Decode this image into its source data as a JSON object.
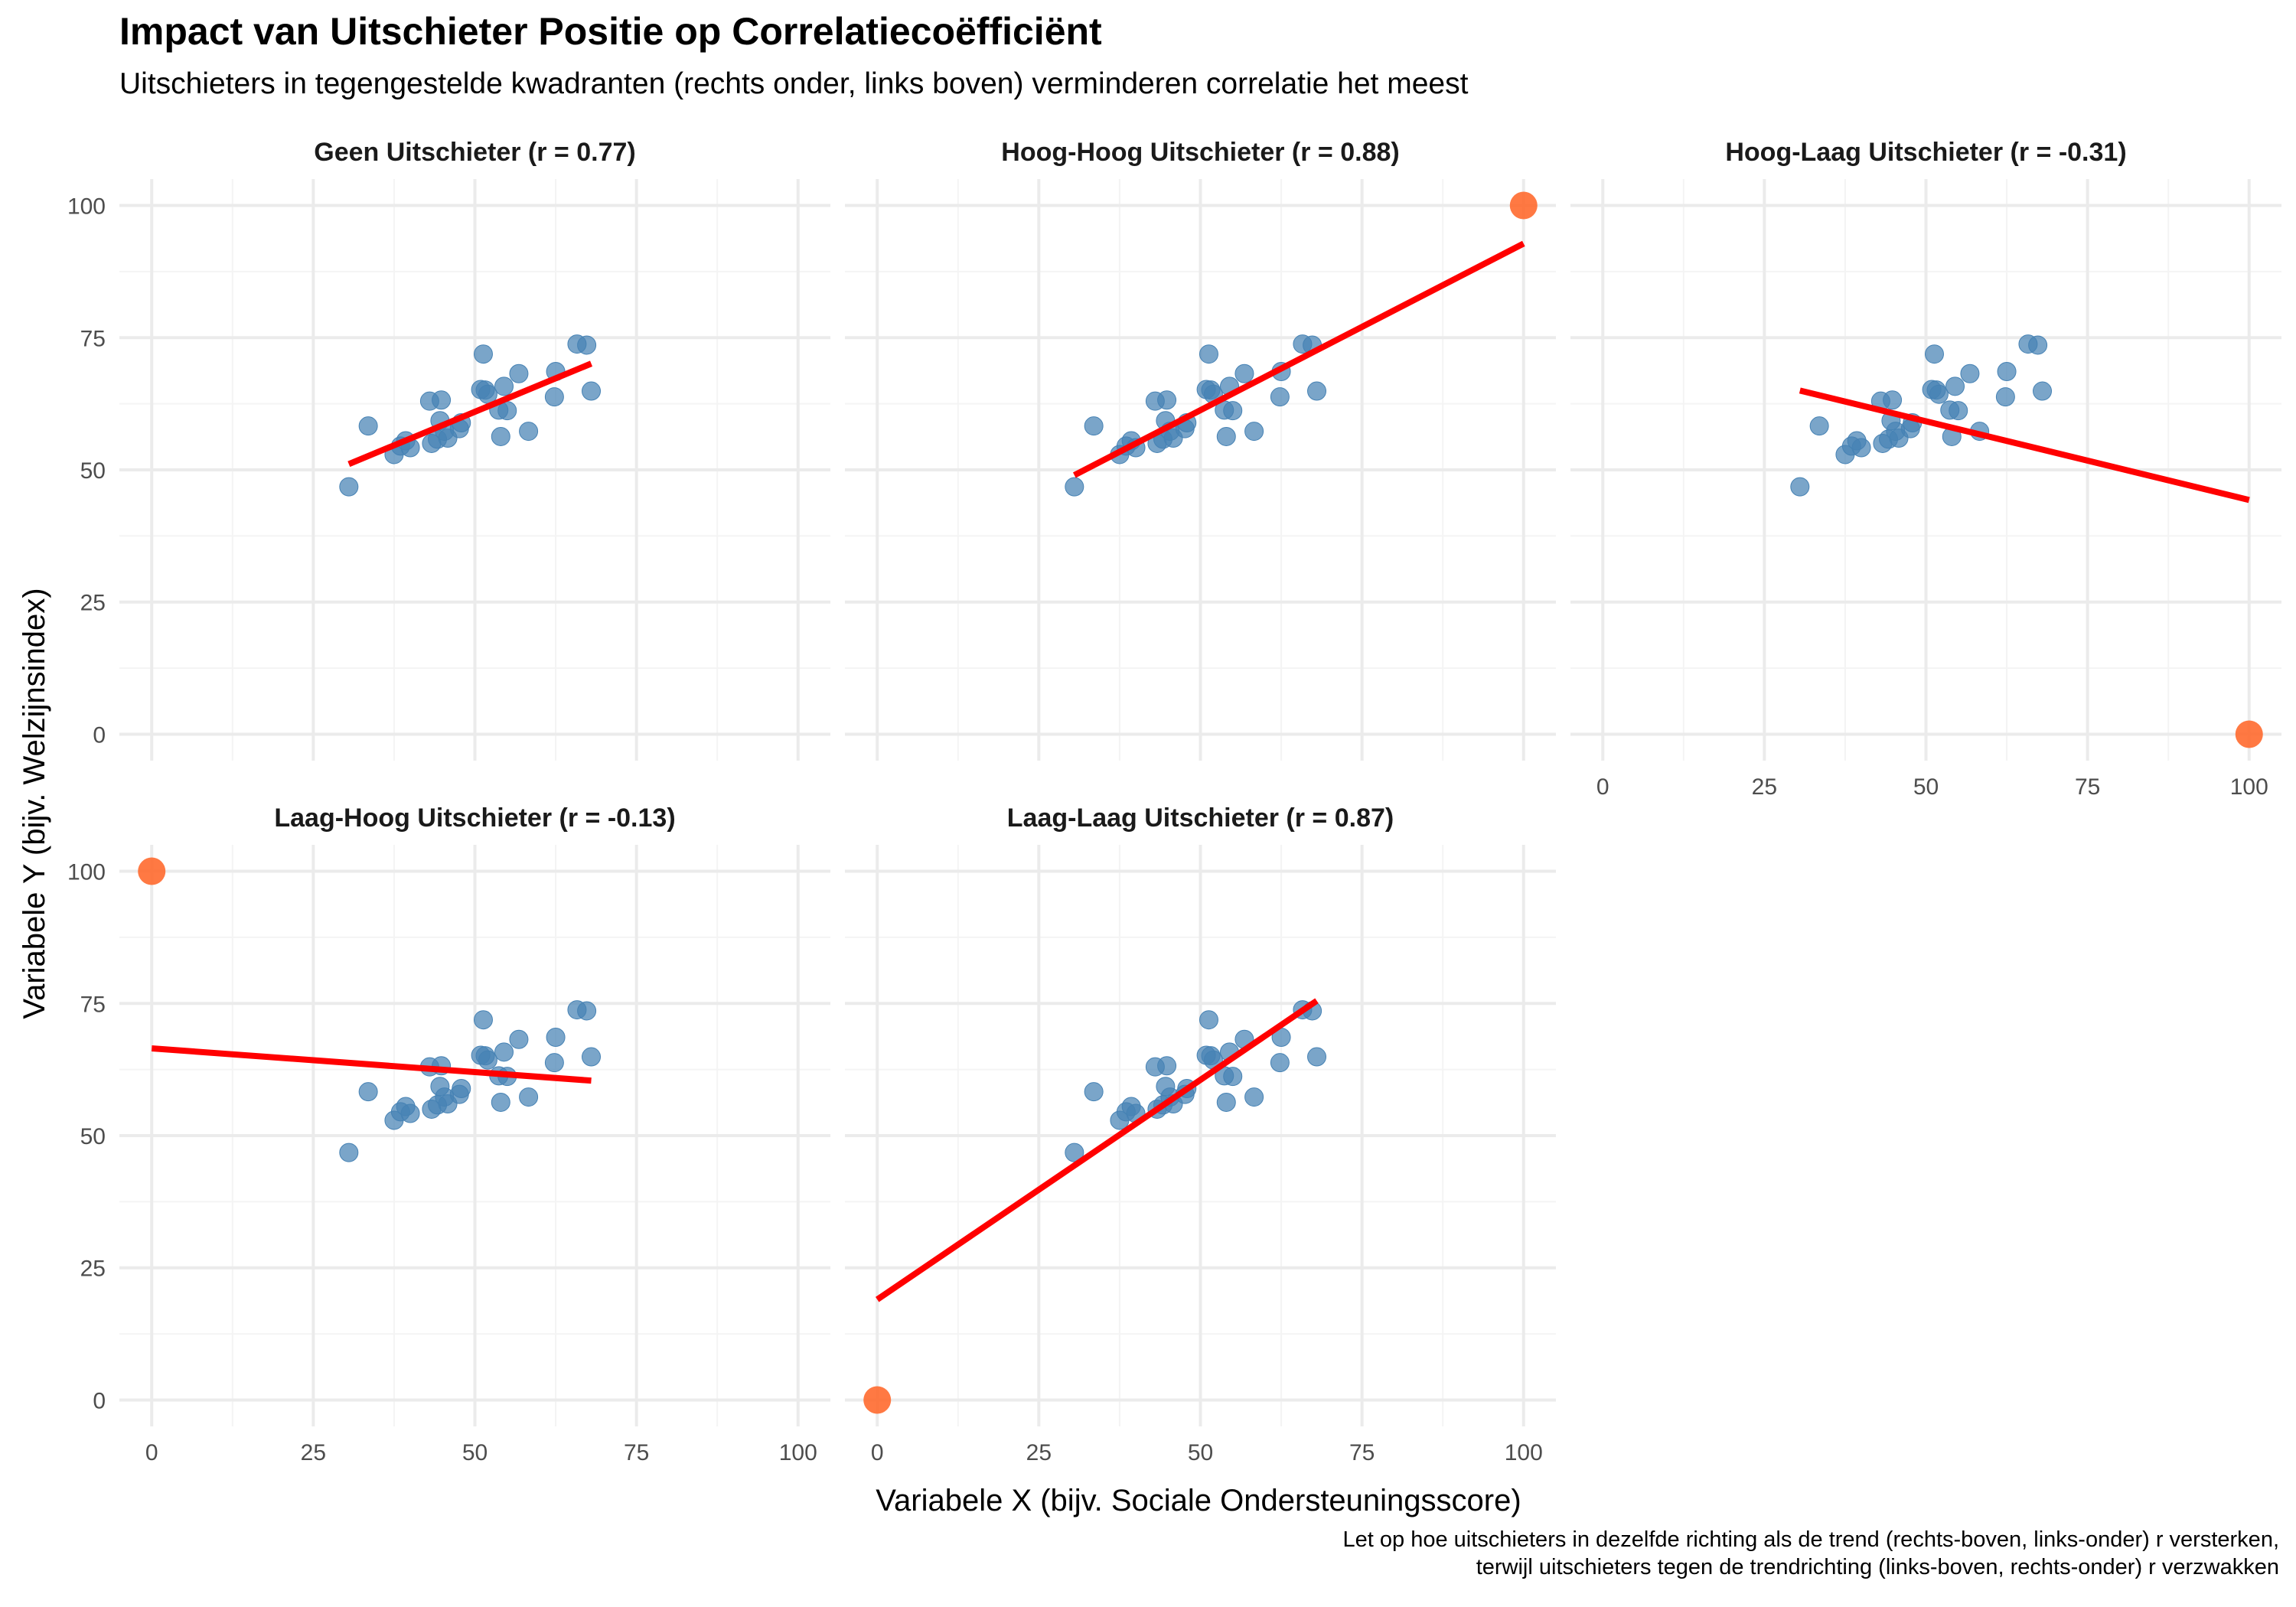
{
  "chart_data": {
    "type": "scatter",
    "title": "Impact van Uitschieter Positie op Correlatiecoëfficiënt",
    "subtitle": "Uitschieters in tegengestelde kwadranten (rechts onder, links boven) verminderen correlatie het meest",
    "xlabel": "Variabele X (bijv. Sociale Ondersteuningsscore)",
    "ylabel": "Variabele Y (bijv. Welzijnsindex)",
    "caption": [
      "Let op hoe uitschieters in dezelfde richting als de trend (rechts-boven, links-onder) r versterken,",
      "terwijl uitschieters tegen de trendrichting (links-boven, rechts-onder) r verzwakken"
    ],
    "xlim": [
      -5,
      105
    ],
    "ylim": [
      -5,
      105
    ],
    "xticks": [
      0,
      25,
      50,
      75,
      100
    ],
    "yticks": [
      0,
      25,
      50,
      75,
      100
    ],
    "grid": true,
    "colors": {
      "points": "#4682B4",
      "outlier": "#FF6A2F",
      "fit_line": "#FF0000",
      "grid": "#EBEBEB"
    },
    "base_points": [
      {
        "x": 30.5,
        "y": 46.8
      },
      {
        "x": 33.5,
        "y": 58.3
      },
      {
        "x": 37.5,
        "y": 52.9
      },
      {
        "x": 38.5,
        "y": 54.5
      },
      {
        "x": 39.3,
        "y": 55.5
      },
      {
        "x": 40.0,
        "y": 54.2
      },
      {
        "x": 43.0,
        "y": 63.0
      },
      {
        "x": 43.3,
        "y": 55.0
      },
      {
        "x": 44.2,
        "y": 55.8
      },
      {
        "x": 44.6,
        "y": 59.3
      },
      {
        "x": 44.8,
        "y": 63.2
      },
      {
        "x": 45.3,
        "y": 57.3
      },
      {
        "x": 45.8,
        "y": 56.0
      },
      {
        "x": 47.6,
        "y": 57.8
      },
      {
        "x": 47.9,
        "y": 58.9
      },
      {
        "x": 50.9,
        "y": 65.2
      },
      {
        "x": 51.3,
        "y": 71.9
      },
      {
        "x": 51.6,
        "y": 65.1
      },
      {
        "x": 52.0,
        "y": 64.3
      },
      {
        "x": 53.7,
        "y": 61.3
      },
      {
        "x": 54.0,
        "y": 56.3
      },
      {
        "x": 54.5,
        "y": 65.8
      },
      {
        "x": 55.0,
        "y": 61.2
      },
      {
        "x": 56.8,
        "y": 68.2
      },
      {
        "x": 58.3,
        "y": 57.3
      },
      {
        "x": 62.3,
        "y": 63.8
      },
      {
        "x": 62.5,
        "y": 68.6
      },
      {
        "x": 65.8,
        "y": 73.8
      },
      {
        "x": 67.3,
        "y": 73.6
      },
      {
        "x": 68.0,
        "y": 64.9
      }
    ],
    "panels": [
      {
        "title": "Geen Uitschieter (r = 0.77)",
        "outlier": null,
        "fit": {
          "x1": 30.5,
          "y1": 51.1,
          "x2": 68,
          "y2": 70.1
        }
      },
      {
        "title": "Hoog-Hoog Uitschieter (r = 0.88)",
        "outlier": {
          "x": 100,
          "y": 100
        },
        "fit": {
          "x1": 30.5,
          "y1": 49.0,
          "x2": 100,
          "y2": 92.8
        }
      },
      {
        "title": "Hoog-Laag Uitschieter (r = -0.31)",
        "outlier": {
          "x": 100,
          "y": 0
        },
        "fit": {
          "x1": 30.5,
          "y1": 65.0,
          "x2": 100,
          "y2": 44.3
        }
      },
      {
        "title": "Laag-Hoog Uitschieter (r = -0.13)",
        "outlier": {
          "x": 0,
          "y": 100
        },
        "fit": {
          "x1": 0,
          "y1": 66.5,
          "x2": 68,
          "y2": 60.4
        }
      },
      {
        "title": "Laag-Laag Uitschieter (r = 0.87)",
        "outlier": {
          "x": 0,
          "y": 0
        },
        "fit": {
          "x1": 0,
          "y1": 19.0,
          "x2": 68,
          "y2": 75.5
        }
      }
    ]
  }
}
